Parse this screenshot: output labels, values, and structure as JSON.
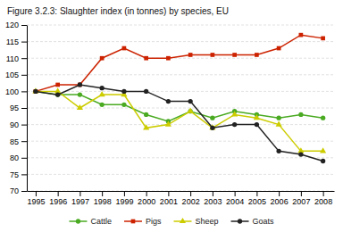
{
  "chart_data": {
    "type": "line",
    "title": "Figure 3.2.3: Slaughter index (in tonnes) by species, EU",
    "x": [
      1995,
      1996,
      1997,
      1998,
      1999,
      2000,
      2001,
      2002,
      2003,
      2004,
      2005,
      2006,
      2007,
      2008
    ],
    "xlim": [
      1994.6,
      2008.5
    ],
    "xticks": [
      1995,
      1996,
      1997,
      1998,
      1999,
      2000,
      2001,
      2002,
      2003,
      2004,
      2005,
      2006,
      2007,
      2008
    ],
    "ylim": [
      70,
      120
    ],
    "yticks": [
      70,
      75,
      80,
      85,
      90,
      95,
      100,
      105,
      110,
      115,
      120
    ],
    "grid": true,
    "legend": "bottom",
    "series": [
      {
        "name": "Cattle",
        "color": "#4aaa22",
        "marker": "circle",
        "values": [
          100,
          99,
          99,
          96,
          96,
          93,
          91,
          94,
          92,
          94,
          93,
          92,
          93,
          92
        ]
      },
      {
        "name": "Pigs",
        "color": "#cc2200",
        "marker": "square",
        "values": [
          100,
          102,
          102,
          110,
          113,
          110,
          110,
          111,
          111,
          111,
          111,
          113,
          117,
          116
        ]
      },
      {
        "name": "Sheep",
        "color": "#cccc00",
        "marker": "triangle",
        "values": [
          100,
          100,
          95,
          99,
          99,
          89,
          90,
          94,
          89,
          93,
          92,
          90,
          82,
          82
        ]
      },
      {
        "name": "Goats",
        "color": "#222222",
        "marker": "circle",
        "values": [
          100,
          99,
          102,
          101,
          100,
          100,
          97,
          97,
          89,
          90,
          90,
          82,
          81,
          79
        ]
      }
    ]
  }
}
